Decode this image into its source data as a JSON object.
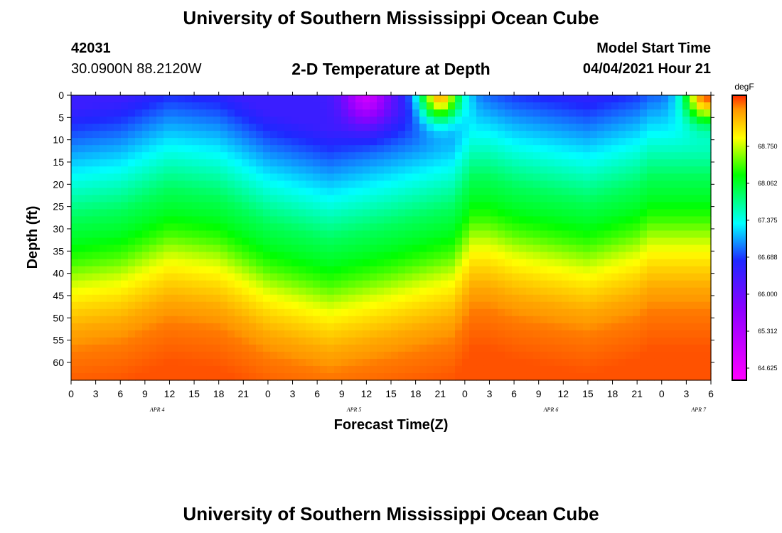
{
  "header": {
    "title": "University of Southern Mississippi Ocean Cube",
    "footer_title": "University of Southern Mississippi Ocean Cube",
    "station_id": "42031",
    "station_coords": "30.0900N  88.2120W",
    "chart_title": "2-D Temperature at Depth",
    "model_start_label": "Model Start Time",
    "model_start_value": "04/04/2021 Hour 21"
  },
  "chart_data": {
    "type": "heatmap",
    "title": "2-D Temperature at Depth",
    "xlabel": "Forecast Time(Z)",
    "ylabel": "Depth (ft)",
    "x_ticks": [
      "0",
      "3",
      "6",
      "9",
      "12",
      "15",
      "18",
      "21",
      "0",
      "3",
      "6",
      "9",
      "12",
      "15",
      "18",
      "21",
      "0",
      "3",
      "6",
      "9",
      "12",
      "15",
      "18",
      "21",
      "0",
      "3",
      "6"
    ],
    "day_labels": [
      {
        "label": "APR 4",
        "tick_index": 3.5
      },
      {
        "label": "APR 5",
        "tick_index": 11.5
      },
      {
        "label": "APR 6",
        "tick_index": 19.5
      },
      {
        "label": "APR 7",
        "tick_index": 25.5
      }
    ],
    "y_ticks": [
      0,
      5,
      10,
      15,
      20,
      25,
      30,
      35,
      40,
      45,
      50,
      55,
      60
    ],
    "ylim": [
      0,
      64
    ],
    "xlim_index": [
      0,
      26
    ],
    "colorbar": {
      "unit": "degF",
      "tick_labels": [
        "68.750",
        "68.062",
        "67.375",
        "66.688",
        "66.000",
        "65.312",
        "64.625"
      ],
      "tick_values": [
        68.75,
        68.062,
        67.375,
        66.688,
        66.0,
        65.312,
        64.625
      ],
      "range": [
        64.4,
        69.7
      ]
    },
    "depth_profile_degF": [
      {
        "depth": 0,
        "value": 66.4
      },
      {
        "depth": 15,
        "value": 67.3
      },
      {
        "depth": 25,
        "value": 67.9
      },
      {
        "depth": 30,
        "value": 68.1
      },
      {
        "depth": 35,
        "value": 68.4
      },
      {
        "depth": 40,
        "value": 68.8
      },
      {
        "depth": 45,
        "value": 69.1
      },
      {
        "depth": 50,
        "value": 69.35
      },
      {
        "depth": 55,
        "value": 69.5
      },
      {
        "depth": 64,
        "value": 69.6
      }
    ],
    "shallow_layer_depth_ft": [
      {
        "x": 0,
        "depth": 17
      },
      {
        "x": 2,
        "depth": 14
      },
      {
        "x": 4,
        "depth": 5
      },
      {
        "x": 6,
        "depth": 8
      },
      {
        "x": 8,
        "depth": 19
      },
      {
        "x": 10.5,
        "depth": 26
      },
      {
        "x": 13,
        "depth": 20
      },
      {
        "x": 15.5,
        "depth": 13
      },
      {
        "x": 16.3,
        "depth": 0
      },
      {
        "x": 17,
        "depth": 0
      },
      {
        "x": 18,
        "depth": 4
      },
      {
        "x": 19,
        "depth": 6
      },
      {
        "x": 21,
        "depth": 10
      },
      {
        "x": 23,
        "depth": 4
      },
      {
        "x": 23.5,
        "depth": 0
      },
      {
        "x": 26,
        "depth": 0
      }
    ],
    "surface_anomalies": [
      {
        "x": 12.0,
        "depth": 0,
        "value": 65.0
      },
      {
        "x": 15.0,
        "depth": 0,
        "value": 69.3
      },
      {
        "x": 25.8,
        "depth": 0,
        "value": 69.6
      }
    ]
  }
}
